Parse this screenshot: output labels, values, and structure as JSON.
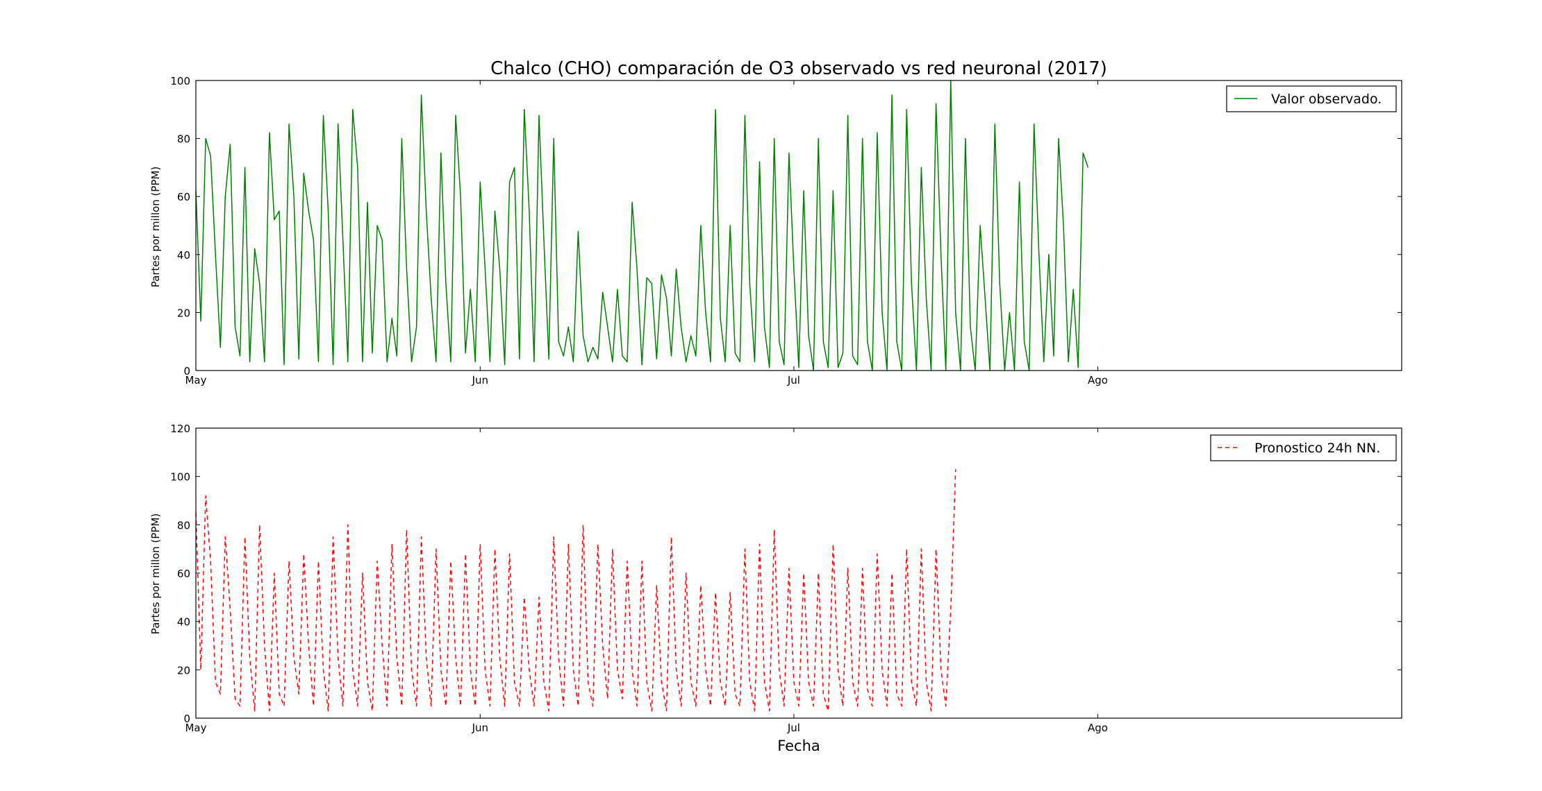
{
  "figure": {
    "title": "Chalco (CHO) comparación de O3 observado vs red neuronal (2017)",
    "xlabel": "Fecha"
  },
  "colors": {
    "observed": "#008000",
    "forecast": "#ff0000",
    "axes": "#000000",
    "background": "#ffffff"
  },
  "chart_data": [
    {
      "type": "line",
      "ylabel": "Partes por millon (PPM)",
      "ylim": [
        0,
        100
      ],
      "yticks": [
        0,
        20,
        40,
        60,
        80,
        100
      ],
      "x_range_days": [
        "2017-05-01",
        "2017-09-01"
      ],
      "xticks": [
        {
          "label": "May",
          "date": "2017-05-01"
        },
        {
          "label": "Jun",
          "date": "2017-05-30"
        },
        {
          "label": "Jul",
          "date": "2017-07-01"
        },
        {
          "label": "Ago",
          "date": "2017-08-01"
        }
      ],
      "legend": {
        "placement": "upper right"
      },
      "grid": false,
      "series": [
        {
          "name": "Valor observado.",
          "style": "solid",
          "color": "#008000",
          "x_start": "2017-05-01",
          "step_days": 0.5,
          "values": [
            62,
            17,
            80,
            74,
            40,
            8,
            60,
            78,
            15,
            5,
            70,
            3,
            42,
            30,
            3,
            82,
            52,
            55,
            2,
            85,
            60,
            4,
            68,
            55,
            45,
            3,
            88,
            55,
            2,
            85,
            45,
            3,
            90,
            70,
            3,
            58,
            6,
            50,
            45,
            3,
            18,
            5,
            80,
            35,
            3,
            15,
            95,
            55,
            25,
            3,
            75,
            30,
            3,
            88,
            60,
            6,
            28,
            3,
            65,
            35,
            3,
            55,
            35,
            2,
            65,
            70,
            4,
            90,
            55,
            3,
            88,
            45,
            4,
            80,
            10,
            5,
            15,
            3,
            48,
            12,
            3,
            8,
            4,
            27,
            15,
            3,
            28,
            5,
            3,
            58,
            35,
            2,
            32,
            30,
            4,
            33,
            25,
            5,
            35,
            15,
            3,
            12,
            5,
            50,
            20,
            3,
            90,
            18,
            3,
            50,
            6,
            3,
            88,
            30,
            3,
            72,
            15,
            1,
            80,
            10,
            2,
            75,
            35,
            1,
            62,
            12,
            0,
            80,
            10,
            1,
            62,
            1,
            6,
            88,
            5,
            2,
            80,
            10,
            0,
            82,
            20,
            0,
            95,
            10,
            0,
            90,
            30,
            0,
            70,
            25,
            0,
            92,
            40,
            0,
            100,
            20,
            0,
            80,
            15,
            0,
            50,
            25,
            0,
            85,
            30,
            0,
            20,
            0,
            65,
            10,
            0,
            85,
            40,
            3,
            40,
            5,
            80,
            50,
            3,
            28,
            1,
            75,
            70
          ]
        }
      ]
    },
    {
      "type": "line",
      "ylabel": "Partes por millon (PPM)",
      "ylim": [
        0,
        120
      ],
      "yticks": [
        0,
        20,
        40,
        60,
        80,
        100,
        120
      ],
      "x_range_days": [
        "2017-05-01",
        "2017-09-01"
      ],
      "xticks": [
        {
          "label": "May",
          "date": "2017-05-01"
        },
        {
          "label": "Jun",
          "date": "2017-05-30"
        },
        {
          "label": "Jul",
          "date": "2017-07-01"
        },
        {
          "label": "Ago",
          "date": "2017-08-01"
        }
      ],
      "legend": {
        "placement": "upper right"
      },
      "grid": false,
      "series": [
        {
          "name": "Pronostico 24h NN.",
          "style": "dashed",
          "color": "#ff0000",
          "x_start": "2017-05-01",
          "step_days": 0.5,
          "values": [
            85,
            20,
            92,
            65,
            15,
            10,
            75,
            45,
            8,
            5,
            75,
            25,
            3,
            80,
            30,
            3,
            60,
            10,
            5,
            65,
            25,
            10,
            68,
            30,
            5,
            65,
            20,
            3,
            75,
            25,
            5,
            80,
            20,
            5,
            60,
            15,
            3,
            65,
            30,
            5,
            72,
            25,
            5,
            78,
            20,
            5,
            75,
            25,
            5,
            70,
            20,
            5,
            65,
            25,
            5,
            68,
            20,
            5,
            72,
            20,
            5,
            70,
            25,
            5,
            68,
            15,
            5,
            50,
            20,
            5,
            50,
            15,
            3,
            75,
            25,
            5,
            72,
            20,
            5,
            80,
            15,
            5,
            72,
            30,
            8,
            70,
            20,
            8,
            65,
            20,
            5,
            65,
            15,
            3,
            55,
            15,
            3,
            75,
            20,
            5,
            60,
            15,
            5,
            55,
            20,
            5,
            52,
            15,
            5,
            52,
            10,
            5,
            70,
            15,
            3,
            72,
            15,
            3,
            78,
            20,
            5,
            62,
            15,
            5,
            60,
            15,
            5,
            60,
            10,
            3,
            72,
            20,
            5,
            62,
            15,
            5,
            62,
            12,
            5,
            68,
            20,
            5,
            60,
            10,
            5,
            70,
            15,
            5,
            70,
            15,
            3,
            70,
            20,
            5,
            45,
            103
          ]
        }
      ]
    }
  ]
}
